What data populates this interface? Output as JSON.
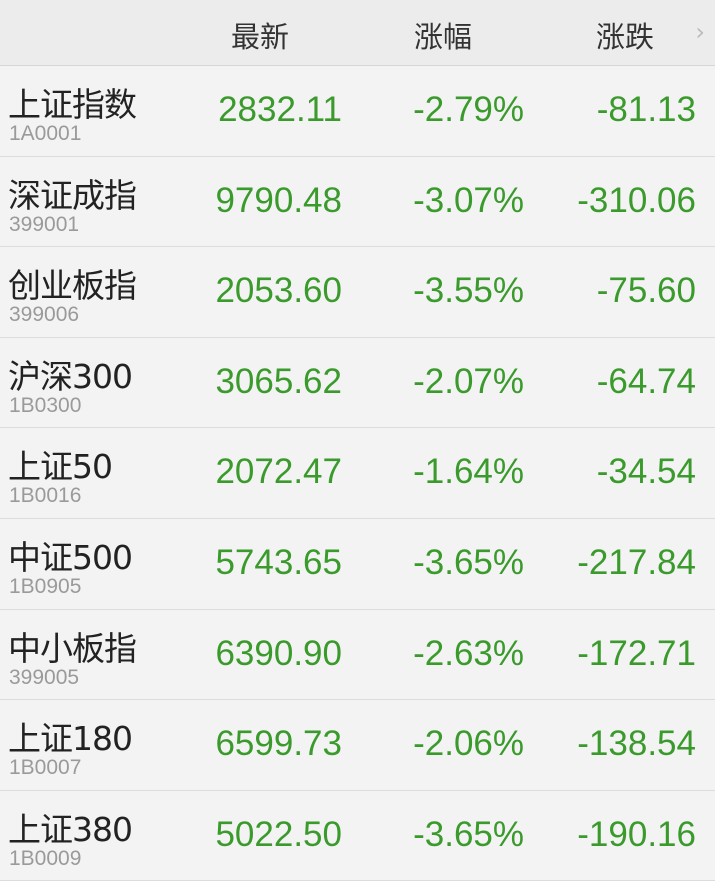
{
  "header": {
    "columns": [
      "最新",
      "涨幅",
      "涨跌"
    ],
    "more_icon": "chevron-right-icon"
  },
  "colors": {
    "down": "#3a9a2c"
  },
  "rows": [
    {
      "name": "上证指数",
      "code": "1A0001",
      "latest": "2832.11",
      "pct": "-2.79%",
      "change": "-81.13"
    },
    {
      "name": "深证成指",
      "code": "399001",
      "latest": "9790.48",
      "pct": "-3.07%",
      "change": "-310.06"
    },
    {
      "name": "创业板指",
      "code": "399006",
      "latest": "2053.60",
      "pct": "-3.55%",
      "change": "-75.60"
    },
    {
      "name": "沪深300",
      "code": "1B0300",
      "latest": "3065.62",
      "pct": "-2.07%",
      "change": "-64.74"
    },
    {
      "name": "上证50",
      "code": "1B0016",
      "latest": "2072.47",
      "pct": "-1.64%",
      "change": "-34.54"
    },
    {
      "name": "中证500",
      "code": "1B0905",
      "latest": "5743.65",
      "pct": "-3.65%",
      "change": "-217.84"
    },
    {
      "name": "中小板指",
      "code": "399005",
      "latest": "6390.90",
      "pct": "-2.63%",
      "change": "-172.71"
    },
    {
      "name": "上证180",
      "code": "1B0007",
      "latest": "6599.73",
      "pct": "-2.06%",
      "change": "-138.54"
    },
    {
      "name": "上证380",
      "code": "1B0009",
      "latest": "5022.50",
      "pct": "-3.65%",
      "change": "-190.16"
    }
  ]
}
